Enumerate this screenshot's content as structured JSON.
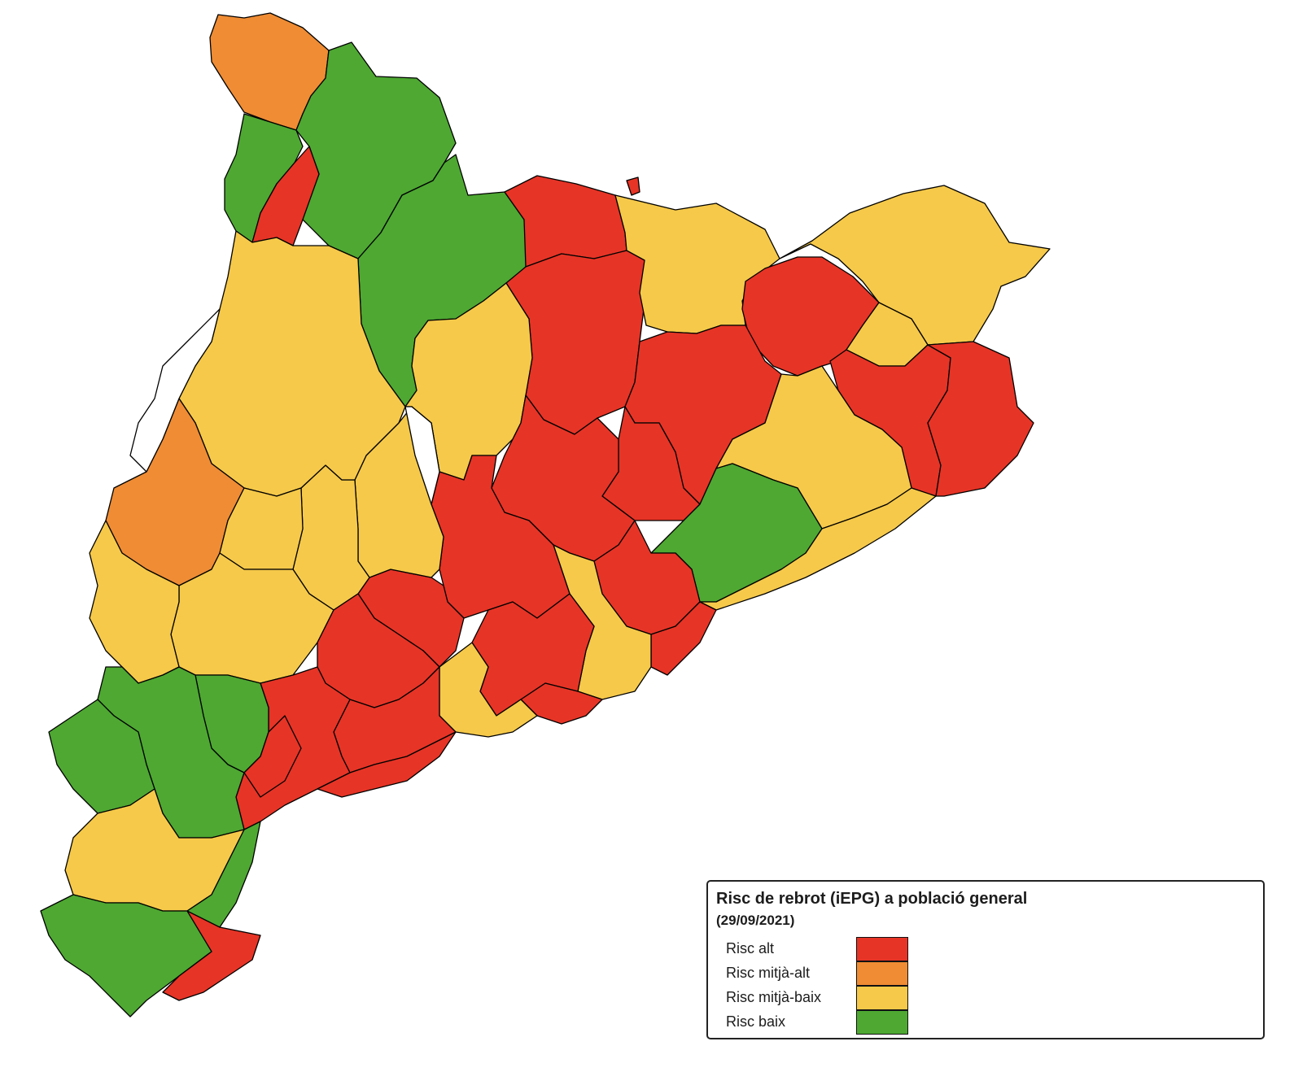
{
  "colors": {
    "alt": "#e63426",
    "mitja_alt": "#ef8c34",
    "mitja_baix": "#f6c94a",
    "baix": "#4ea832"
  },
  "legend": {
    "title": "Risc de rebrot (iEPG) a població general",
    "date": "(29/09/2021)",
    "items": [
      {
        "label": "Risc alt",
        "color": "#e63426"
      },
      {
        "label": "Risc mitjà-alt",
        "color": "#ef8c34"
      },
      {
        "label": "Risc mitjà-baix",
        "color": "#f6c94a"
      },
      {
        "label": "Risc baix",
        "color": "#4ea832"
      }
    ]
  },
  "regions": [
    {
      "risk": "mitja_alt"
    },
    {
      "risk": "baix"
    },
    {
      "risk": "baix"
    },
    {
      "risk": "alt"
    },
    {
      "risk": "baix"
    },
    {
      "risk": "alt"
    },
    {
      "risk": "alt"
    },
    {
      "risk": "mitja_baix"
    },
    {
      "risk": "mitja_baix"
    },
    {
      "risk": "alt"
    },
    {
      "risk": "mitja_baix"
    },
    {
      "risk": "alt"
    },
    {
      "risk": "alt"
    },
    {
      "risk": "alt"
    },
    {
      "risk": "mitja_baix"
    },
    {
      "risk": "alt"
    },
    {
      "risk": "mitja_baix"
    },
    {
      "risk": "alt"
    },
    {
      "risk": "baix"
    },
    {
      "risk": "mitja_baix"
    },
    {
      "risk": "alt"
    },
    {
      "risk": "alt"
    },
    {
      "risk": "mitja_baix"
    },
    {
      "risk": "alt"
    },
    {
      "risk": "alt"
    },
    {
      "risk": "alt"
    },
    {
      "risk": "mitja_baix"
    },
    {
      "risk": "alt"
    },
    {
      "risk": "mitja_baix"
    },
    {
      "risk": "mitja_baix"
    },
    {
      "risk": "mitja_baix"
    },
    {
      "risk": "mitja_alt"
    },
    {
      "risk": "mitja_baix"
    },
    {
      "risk": "mitja_baix"
    },
    {
      "risk": "mitja_baix"
    },
    {
      "risk": "alt"
    },
    {
      "risk": "alt"
    },
    {
      "risk": "alt"
    },
    {
      "risk": "baix"
    },
    {
      "risk": "baix"
    },
    {
      "risk": "baix"
    },
    {
      "risk": "mitja_baix"
    },
    {
      "risk": "baix"
    },
    {
      "risk": "alt"
    },
    {
      "risk": "alt"
    },
    {
      "risk": "alt"
    },
    {
      "risk": "alt"
    }
  ]
}
